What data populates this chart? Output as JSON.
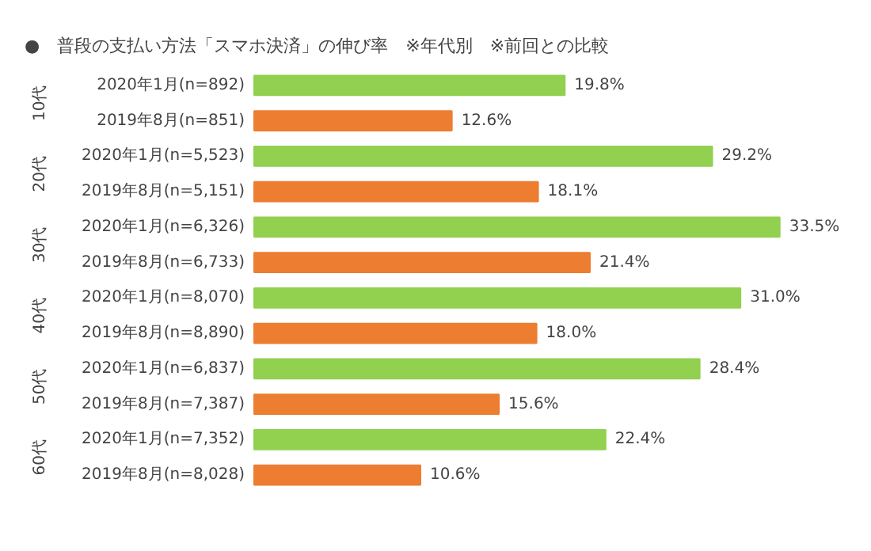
{
  "chart_data": {
    "type": "bar",
    "orientation": "horizontal",
    "title": "●　普段の支払い方法「スマホ決済」の伸び率　※年代別　※前回との比較",
    "categories": [
      "2020年1月(n=892)",
      "2019年8月(n=851)",
      "2020年1月(n=5,523)",
      "2019年8月(n=5,151)",
      "2020年1月(n=6,326)",
      "2019年8月(n=6,733)",
      "2020年1月(n=8,070)",
      "2019年8月(n=8,890)",
      "2020年1月(n=6,837)",
      "2019年8月(n=7,387)",
      "2020年1月(n=7,352)",
      "2019年8月(n=8,028)"
    ],
    "values": [
      19.8,
      12.6,
      29.2,
      18.1,
      33.5,
      21.4,
      31.0,
      18.0,
      28.4,
      15.6,
      22.4,
      10.6
    ],
    "colors": [
      "#92d050",
      "#ed7d31",
      "#92d050",
      "#ed7d31",
      "#92d050",
      "#ed7d31",
      "#92d050",
      "#ed7d31",
      "#92d050",
      "#ed7d31",
      "#92d050",
      "#ed7d31"
    ],
    "value_labels": [
      "19.8%",
      "12.6%",
      "29.2%",
      "18.1%",
      "33.5%",
      "21.4%",
      "31.0%",
      "18.0%",
      "28.4%",
      "15.6%",
      "22.4%",
      "10.6%"
    ],
    "annotations": [
      "10代",
      "20代",
      "30代",
      "40代",
      "50代",
      "60代"
    ]
  }
}
